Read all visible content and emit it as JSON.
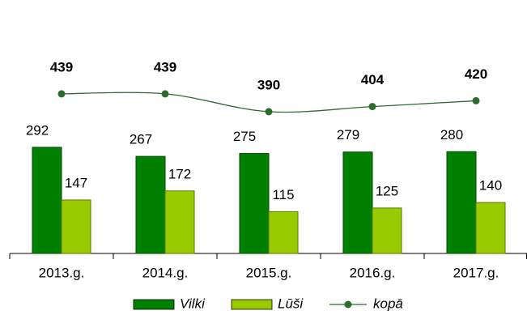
{
  "chart_data": {
    "type": "bar",
    "categories": [
      "2013.g.",
      "2014.g.",
      "2015.g.",
      "2016.g.",
      "2017.g."
    ],
    "series": [
      {
        "name": "Vilki",
        "color": "#008000",
        "values": [
          292,
          267,
          275,
          279,
          280
        ]
      },
      {
        "name": "Lūši",
        "color": "#99cc00",
        "values": [
          147,
          172,
          115,
          125,
          140
        ]
      },
      {
        "name": "kopā",
        "type": "line",
        "color": "#2e6b2e",
        "values": [
          439,
          439,
          390,
          404,
          420
        ]
      }
    ],
    "ylim": [
      0,
      600
    ],
    "legend": "bottom"
  }
}
